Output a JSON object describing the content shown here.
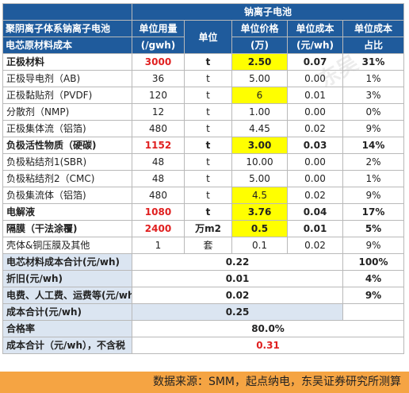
{
  "header": {
    "group": "钠离子电池",
    "title_line1": "聚阴离子体系钠离子电池",
    "title_line2": "电芯原材料成本",
    "cols": {
      "usage": "单位用量",
      "usage_unit": "(/gwh)",
      "unit": "单位",
      "price": "单位价格",
      "price_unit": "(万)",
      "cost": "单位成本",
      "cost_unit": "(元/wh)",
      "ratio": "单位成本",
      "ratio_unit": "占比"
    }
  },
  "rows": [
    {
      "name": "正极材料",
      "usage": "3000",
      "unit": "t",
      "price": "2.50",
      "cost": "0.07",
      "ratio": "31%",
      "bold": true,
      "hl": true
    },
    {
      "name": "正极导电剂（AB)",
      "usage": "36",
      "unit": "t",
      "price": "5.00",
      "cost": "0.00",
      "ratio": "1%",
      "bold": false,
      "hl": false
    },
    {
      "name": "正极黏贴剂（PVDF)",
      "usage": "120",
      "unit": "t",
      "price": "6",
      "cost": "0.01",
      "ratio": "3%",
      "bold": false,
      "hl": true
    },
    {
      "name": "分散剂（NMP)",
      "usage": "12",
      "unit": "t",
      "price": "1.00",
      "cost": "0.00",
      "ratio": "0%",
      "bold": false,
      "hl": false
    },
    {
      "name": "正极集体流（铝箔)",
      "usage": "480",
      "unit": "t",
      "price": "4.45",
      "cost": "0.02",
      "ratio": "9%",
      "bold": false,
      "hl": false
    },
    {
      "name": "负极活性物质（硬碳)",
      "usage": "1152",
      "unit": "t",
      "price": "3.00",
      "cost": "0.03",
      "ratio": "14%",
      "bold": true,
      "hl": true
    },
    {
      "name": "负极粘结剂1(SBR)",
      "usage": "48",
      "unit": "t",
      "price": "10.00",
      "cost": "0.00",
      "ratio": "2%",
      "bold": false,
      "hl": false
    },
    {
      "name": "负极粘结剂2（CMC)",
      "usage": "48",
      "unit": "t",
      "price": "5.00",
      "cost": "0.00",
      "ratio": "1%",
      "bold": false,
      "hl": false
    },
    {
      "name": "负极集流体（铝箔)",
      "usage": "480",
      "unit": "t",
      "price": "4.5",
      "cost": "0.02",
      "ratio": "9%",
      "bold": false,
      "hl": true
    },
    {
      "name": "电解液",
      "usage": "1080",
      "unit": "t",
      "price": "3.76",
      "cost": "0.04",
      "ratio": "17%",
      "bold": true,
      "hl": true
    },
    {
      "name": "隔膜（干法涂覆)",
      "usage": "2400",
      "unit": "万m2",
      "price": "0.5",
      "cost": "0.01",
      "ratio": "5%",
      "bold": true,
      "hl": true
    },
    {
      "name": "壳体&铜压膜及其他",
      "usage": "1",
      "unit": "套",
      "price": "0.1",
      "cost": "0.02",
      "ratio": "9%",
      "bold": false,
      "hl": false
    }
  ],
  "summary": {
    "total_label": "电芯材料成本合计(元/wh)",
    "total_value": "0.22",
    "total_ratio": "100%",
    "depr_label": "折旧(元/wh)",
    "depr_value": "0.01",
    "depr_ratio": "4%",
    "other_label": "电费、人工费、运费等(元/wh)",
    "other_value": "0.02",
    "other_ratio": "9%",
    "cost_label": "成本合计(元/wh)",
    "cost_value": "0.25",
    "yield_label": "合格率",
    "yield_value": "80.0%",
    "notax_label": "成本合计（元/wh），不含税",
    "notax_value": "0.31"
  },
  "footer": {
    "source": "数据来源：SMM，起点纳电，东吴证券研究所测算"
  },
  "colors": {
    "header": "#1f5b9c",
    "highlight": "#ffff00",
    "red": "#e02020",
    "summary": "#dbe5f1",
    "footer": "#f5a443"
  }
}
